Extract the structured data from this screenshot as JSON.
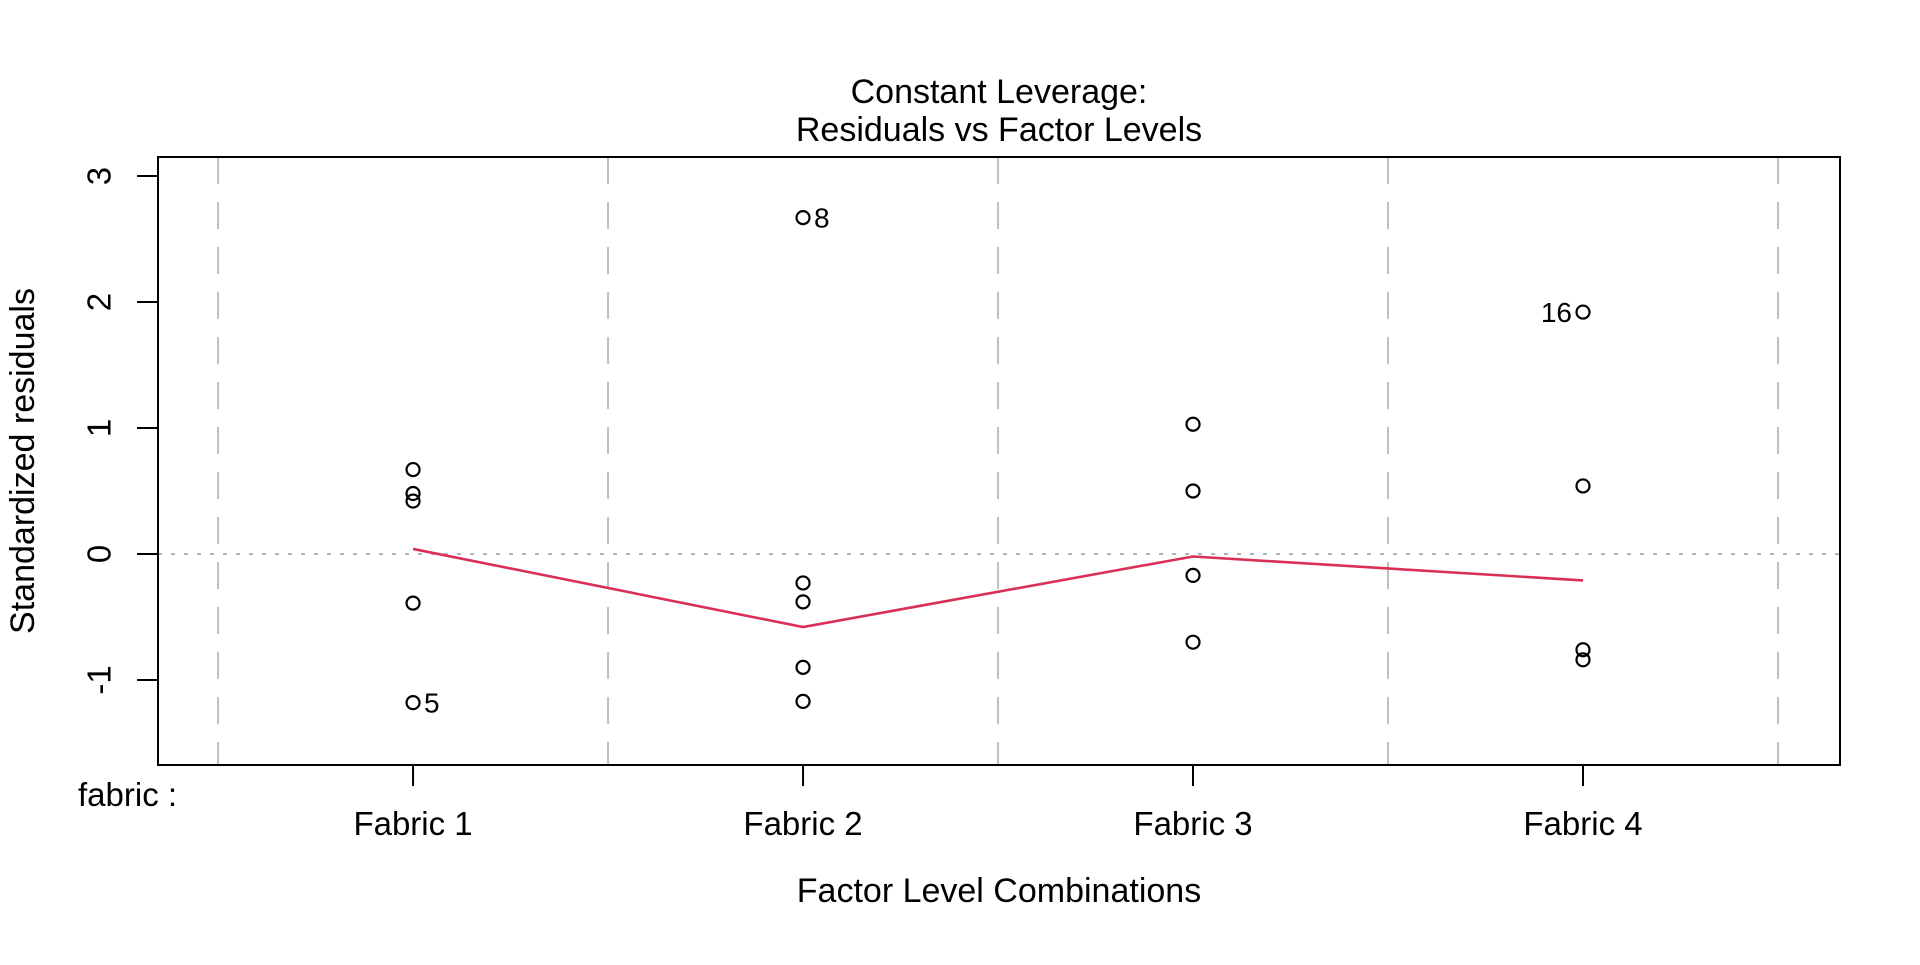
{
  "figure": {
    "background": "#ffffff",
    "foreground": "#000000"
  },
  "chart_data": {
    "type": "scatter",
    "title_line1": "Constant Leverage:",
    "title_line2": "Residuals vs Factor Levels",
    "xlabel": "Factor Level Combinations",
    "ylabel": "Standardized residuals",
    "factor_axis_label": "fabric :",
    "categories": [
      "Fabric 1",
      "Fabric 2",
      "Fabric 3",
      "Fabric 4"
    ],
    "x_centers": [
      1,
      2,
      3,
      4
    ],
    "xlim": [
      0.346,
      4.659
    ],
    "ylim": [
      -1.675,
      3.151
    ],
    "y_ticks": [
      {
        "value": -1,
        "label": "-1"
      },
      {
        "value": 0,
        "label": "0"
      },
      {
        "value": 1,
        "label": "1"
      },
      {
        "value": 2,
        "label": "2"
      },
      {
        "value": 3,
        "label": "3"
      }
    ],
    "separators_x": [
      0.5,
      1.5,
      2.5,
      3.5,
      4.5
    ],
    "separator_style": {
      "pattern": "dashed",
      "color": "#bfbfbf"
    },
    "zero_line": {
      "value": 0,
      "pattern": "dotted",
      "color": "#b3b3b3"
    },
    "marker": {
      "shape": "open-circle",
      "color": "#000000"
    },
    "groups": [
      {
        "category": "Fabric 1",
        "x": 1,
        "points": [
          {
            "value": 0.67
          },
          {
            "value": 0.48
          },
          {
            "value": 0.42
          },
          {
            "value": -0.39
          },
          {
            "value": -1.18,
            "label": "5",
            "label_side": "right"
          }
        ]
      },
      {
        "category": "Fabric 2",
        "x": 2,
        "points": [
          {
            "value": 2.67,
            "label": "8",
            "label_side": "right"
          },
          {
            "value": -0.23
          },
          {
            "value": -0.38
          },
          {
            "value": -0.9
          },
          {
            "value": -1.17
          }
        ]
      },
      {
        "category": "Fabric 3",
        "x": 3,
        "points": [
          {
            "value": 1.03
          },
          {
            "value": 0.5
          },
          {
            "value": -0.17
          },
          {
            "value": -0.7
          }
        ]
      },
      {
        "category": "Fabric 4",
        "x": 4,
        "points": [
          {
            "value": 1.92,
            "label": "16",
            "label_side": "left"
          },
          {
            "value": 0.54
          },
          {
            "value": -0.76
          },
          {
            "value": -0.84
          }
        ]
      }
    ],
    "smooth_line": {
      "name": "lowess-smooth",
      "color": "#d93056",
      "x": [
        1,
        2,
        3,
        4
      ],
      "values": [
        0.04,
        -0.58,
        -0.02,
        -0.21
      ]
    }
  }
}
